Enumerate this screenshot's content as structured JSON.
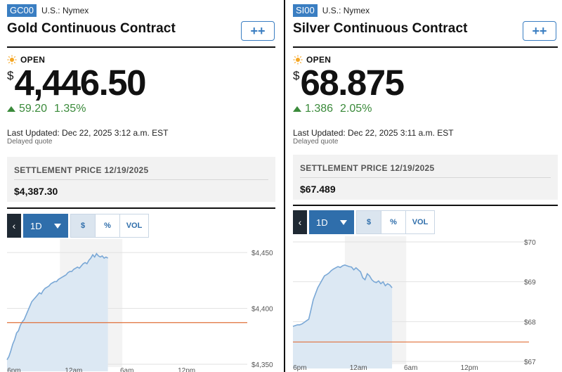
{
  "panels": [
    {
      "ticker": "GC00",
      "exchange": "U.S.: Nymex",
      "name": "Gold Continuous Contract",
      "follow_label": "++",
      "status": "OPEN",
      "currency": "$",
      "price": "4,446.50",
      "change": "59.20",
      "change_pct": "1.35%",
      "last_updated": "Last Updated: Dec 22, 2025 3:12 a.m. EST",
      "delayed": "Delayed quote",
      "settlement_label": "SETTLEMENT PRICE 12/19/2025",
      "settlement_value": "$4,387.30",
      "toolbar": {
        "back": "‹",
        "range": "1D",
        "dollar": "$",
        "percent": "%",
        "volume": "VOL"
      },
      "chart_data": {
        "type": "area",
        "y_ticks": [
          "$4,450",
          "$4,400",
          "$4,350"
        ],
        "y_tick_values": [
          4450,
          4400,
          4350
        ],
        "ylim": [
          4350,
          4457
        ],
        "x_ticks": [
          "6pm",
          "12am",
          "6am",
          "12pm"
        ],
        "x_tick_pos": [
          0.03,
          0.27,
          0.5,
          0.74
        ],
        "shaded_band": [
          0.22,
          0.48
        ],
        "session_end": 0.42,
        "reference_line": 4387.3,
        "series": [
          {
            "values": [
              4354,
              4357,
              4362,
              4368,
              4372,
              4378,
              4380,
              4385,
              4388,
              4390,
              4394,
              4398,
              4402,
              4406,
              4408,
              4410,
              4412,
              4414,
              4413,
              4416,
              4418,
              4419,
              4420,
              4422,
              4423,
              4424,
              4424,
              4426,
              4427,
              4428,
              4429,
              4430,
              4432,
              4433,
              4433,
              4435,
              4436,
              4437,
              4436,
              4438,
              4440,
              4441,
              4440,
              4443,
              4445,
              4448,
              4446,
              4449,
              4447,
              4446,
              4447,
              4445,
              4446,
              4445
            ]
          }
        ]
      },
      "accent_color": "#3a7ec2",
      "up_color": "#3a8a3a",
      "ref_color": "#e0703a"
    },
    {
      "ticker": "SI00",
      "exchange": "U.S.: Nymex",
      "name": "Silver Continuous Contract",
      "follow_label": "++",
      "status": "OPEN",
      "currency": "$",
      "price": "68.875",
      "change": "1.386",
      "change_pct": "2.05%",
      "last_updated": "Last Updated: Dec 22, 2025 3:11 a.m. EST",
      "delayed": "Delayed quote",
      "settlement_label": "SETTLEMENT PRICE 12/19/2025",
      "settlement_value": "$67.489",
      "toolbar": {
        "back": "‹",
        "range": "1D",
        "dollar": "$",
        "percent": "%",
        "volume": "VOL"
      },
      "chart_data": {
        "type": "area",
        "y_ticks": [
          "$70",
          "$69",
          "$68",
          "$67"
        ],
        "y_tick_values": [
          70,
          69,
          68,
          67
        ],
        "ylim": [
          67,
          70
        ],
        "x_ticks": [
          "6pm",
          "12am",
          "6am",
          "12pm"
        ],
        "x_tick_pos": [
          0.03,
          0.27,
          0.5,
          0.74
        ],
        "shaded_band": [
          0.22,
          0.48
        ],
        "session_end": 0.42,
        "reference_line": 67.489,
        "series": [
          {
            "values": [
              67.88,
              67.9,
              67.92,
              67.92,
              67.94,
              67.98,
              68.02,
              68.06,
              68.3,
              68.55,
              68.7,
              68.85,
              68.95,
              69.05,
              69.15,
              69.18,
              69.22,
              69.28,
              69.32,
              69.35,
              69.38,
              69.36,
              69.4,
              69.42,
              69.4,
              69.38,
              69.37,
              69.3,
              69.35,
              69.3,
              69.25,
              69.1,
              69.05,
              69.2,
              69.15,
              69.05,
              69.0,
              68.98,
              69.02,
              68.95,
              69.0,
              68.9,
              68.95,
              68.92,
              68.85
            ]
          }
        ]
      },
      "accent_color": "#3a7ec2",
      "up_color": "#3a8a3a",
      "ref_color": "#e0703a"
    }
  ]
}
